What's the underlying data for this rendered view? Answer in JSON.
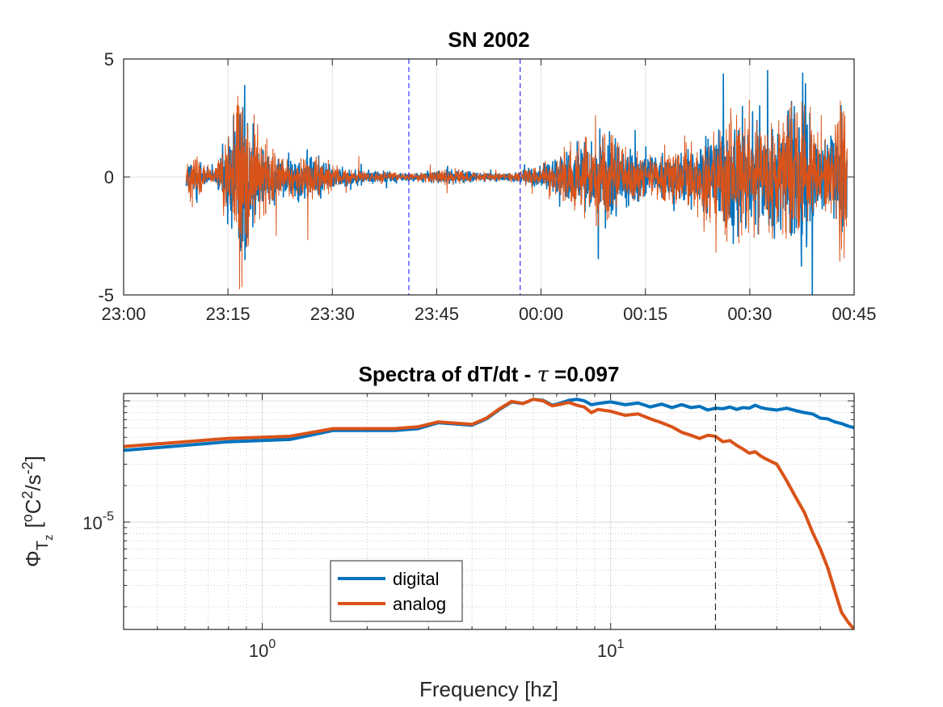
{
  "chart_data": [
    {
      "type": "line",
      "title": "SN 2002",
      "xlabel": "",
      "ylabel": "",
      "xlim": [
        "23:00",
        "00:45"
      ],
      "ylim": [
        -5,
        5
      ],
      "x_ticks": [
        "23:00",
        "23:15",
        "23:30",
        "23:45",
        "00:00",
        "00:15",
        "00:30",
        "00:45"
      ],
      "y_ticks": [
        "-5",
        "0",
        "5"
      ],
      "grid": true,
      "data_start": "23:09",
      "data_end": "00:44",
      "vertical_dashed_lines": [
        "23:41",
        "23:57"
      ],
      "series": [
        {
          "color": "#0072BD",
          "envelope_by_time": [
            [
              "23:09",
              0.3
            ],
            [
              "23:10",
              0.7
            ],
            [
              "23:11",
              0.5
            ],
            [
              "23:12",
              0.25
            ],
            [
              "23:13",
              0.15
            ],
            [
              "23:14",
              0.6
            ],
            [
              "23:15",
              1.5
            ],
            [
              "23:16",
              2.2
            ],
            [
              "23:17",
              2.6
            ],
            [
              "23:18",
              2.0
            ],
            [
              "23:20",
              1.0
            ],
            [
              "23:23",
              0.5
            ],
            [
              "23:26",
              0.7
            ],
            [
              "23:28",
              0.6
            ],
            [
              "23:30",
              0.3
            ],
            [
              "23:34",
              0.2
            ],
            [
              "23:38",
              0.15
            ],
            [
              "23:42",
              0.1
            ],
            [
              "23:45",
              0.2
            ],
            [
              "23:50",
              0.15
            ],
            [
              "23:55",
              0.1
            ],
            [
              "00:00",
              0.3
            ],
            [
              "00:03",
              0.7
            ],
            [
              "00:05",
              0.8
            ],
            [
              "00:08",
              1.0
            ],
            [
              "00:10",
              1.2
            ],
            [
              "00:12",
              0.8
            ],
            [
              "00:15",
              0.6
            ],
            [
              "00:18",
              0.6
            ],
            [
              "00:20",
              0.8
            ],
            [
              "00:23",
              0.9
            ],
            [
              "00:26",
              1.3
            ],
            [
              "00:28",
              1.7
            ],
            [
              "00:30",
              1.7
            ],
            [
              "00:32",
              1.4
            ],
            [
              "00:34",
              1.3
            ],
            [
              "00:36",
              2.0
            ],
            [
              "00:38",
              2.3
            ],
            [
              "00:40",
              0.8
            ],
            [
              "00:42",
              1.2
            ],
            [
              "00:43",
              2.5
            ],
            [
              "00:44",
              1.4
            ]
          ]
        },
        {
          "color": "#D95319",
          "envelope_by_time": [
            [
              "23:09",
              0.35
            ],
            [
              "23:10",
              0.8
            ],
            [
              "23:11",
              0.6
            ],
            [
              "23:12",
              0.3
            ],
            [
              "23:13",
              0.2
            ],
            [
              "23:14",
              0.7
            ],
            [
              "23:15",
              1.7
            ],
            [
              "23:16",
              2.4
            ],
            [
              "23:17",
              2.8
            ],
            [
              "23:18",
              2.2
            ],
            [
              "23:20",
              1.1
            ],
            [
              "23:23",
              0.55
            ],
            [
              "23:26",
              0.75
            ],
            [
              "23:28",
              0.65
            ],
            [
              "23:30",
              0.3
            ],
            [
              "23:34",
              0.2
            ],
            [
              "23:38",
              0.15
            ],
            [
              "23:42",
              0.1
            ],
            [
              "23:45",
              0.2
            ],
            [
              "23:50",
              0.15
            ],
            [
              "23:55",
              0.1
            ],
            [
              "00:00",
              0.3
            ],
            [
              "00:03",
              0.75
            ],
            [
              "00:05",
              0.85
            ],
            [
              "00:08",
              1.1
            ],
            [
              "00:10",
              1.3
            ],
            [
              "00:12",
              0.85
            ],
            [
              "00:15",
              0.65
            ],
            [
              "00:18",
              0.65
            ],
            [
              "00:20",
              0.85
            ],
            [
              "00:23",
              0.95
            ],
            [
              "00:26",
              1.4
            ],
            [
              "00:28",
              1.8
            ],
            [
              "00:30",
              1.8
            ],
            [
              "00:32",
              1.5
            ],
            [
              "00:34",
              1.4
            ],
            [
              "00:36",
              2.1
            ],
            [
              "00:38",
              2.4
            ],
            [
              "00:40",
              0.85
            ],
            [
              "00:42",
              1.3
            ],
            [
              "00:43",
              2.7
            ],
            [
              "00:44",
              1.5
            ]
          ]
        }
      ]
    },
    {
      "type": "line",
      "title_prefix": "Spectra of dT/dt - ",
      "title_symbol": "τ",
      "title_value": " =0.097",
      "xlabel": "Frequency [hz]",
      "ylabel": "Φ",
      "ylabel_subscript": "T",
      "ylabel_sub_subscript": "z",
      "ylabel_units_prefix": "[",
      "ylabel_units_o": "o",
      "ylabel_units_C": "C",
      "ylabel_units_sup2": "2",
      "ylabel_units_mid": "/s",
      "ylabel_units_supm2": "-2",
      "ylabel_units_suffix": "]",
      "x_scale": "log",
      "y_scale": "log",
      "xlim": [
        0.4,
        50
      ],
      "ylim": [
        1.3e-06,
        0.000115
      ],
      "x_ticks": [
        {
          "base": "10",
          "exp": "0",
          "value": 1
        },
        {
          "base": "10",
          "exp": "1",
          "value": 10
        }
      ],
      "y_ticks": [
        {
          "base": "10",
          "exp": "-5",
          "value": 1e-05
        }
      ],
      "grid": true,
      "minor_grid": true,
      "vertical_dashed_line_x": 20,
      "legend": {
        "position": "lower-left",
        "entries": [
          "digital",
          "analog"
        ]
      },
      "series": [
        {
          "name": "digital",
          "color": "#0072BD",
          "points": [
            [
              0.4,
              3.9e-05
            ],
            [
              0.8,
              4.6e-05
            ],
            [
              1.2,
              4.8e-05
            ],
            [
              1.6,
              5.7e-05
            ],
            [
              2.4,
              5.7e-05
            ],
            [
              2.8,
              5.9e-05
            ],
            [
              3.2,
              6.6e-05
            ],
            [
              4.0,
              6.3e-05
            ],
            [
              4.4,
              7.1e-05
            ],
            [
              4.8,
              8.5e-05
            ],
            [
              5.2,
              9.8e-05
            ],
            [
              5.6,
              9.5e-05
            ],
            [
              6.0,
              0.000103
            ],
            [
              6.4,
              0.000101
            ],
            [
              6.8,
              9.2e-05
            ],
            [
              7.2,
              9.6e-05
            ],
            [
              7.6,
              0.000101
            ],
            [
              8.0,
              0.000103
            ],
            [
              8.4,
              0.0001
            ],
            [
              8.8,
              9.3e-05
            ],
            [
              9.2,
              9.5e-05
            ],
            [
              10,
              9.8e-05
            ],
            [
              11,
              9.3e-05
            ],
            [
              12,
              9.6e-05
            ],
            [
              13,
              8.9e-05
            ],
            [
              14,
              9.4e-05
            ],
            [
              15,
              8.8e-05
            ],
            [
              16,
              9.3e-05
            ],
            [
              17,
              8.8e-05
            ],
            [
              18,
              9e-05
            ],
            [
              19,
              8.4e-05
            ],
            [
              20,
              8.7e-05
            ],
            [
              21,
              8.6e-05
            ],
            [
              22,
              8.9e-05
            ],
            [
              23,
              8.5e-05
            ],
            [
              24,
              8.8e-05
            ],
            [
              25,
              8.7e-05
            ],
            [
              26,
              9.2e-05
            ],
            [
              27,
              8.8e-05
            ],
            [
              28,
              8.6e-05
            ],
            [
              30,
              8.4e-05
            ],
            [
              32,
              8.7e-05
            ],
            [
              34,
              8.3e-05
            ],
            [
              36,
              8e-05
            ],
            [
              38,
              7.8e-05
            ],
            [
              40,
              7.2e-05
            ],
            [
              42,
              7.1e-05
            ],
            [
              44,
              6.7e-05
            ],
            [
              46,
              6.5e-05
            ],
            [
              48,
              6.2e-05
            ],
            [
              50,
              6e-05
            ]
          ]
        },
        {
          "name": "analog",
          "color": "#D95319",
          "points": [
            [
              0.4,
              4.2e-05
            ],
            [
              0.8,
              4.9e-05
            ],
            [
              1.2,
              5.1e-05
            ],
            [
              1.6,
              5.9e-05
            ],
            [
              2.4,
              5.9e-05
            ],
            [
              2.8,
              6.1e-05
            ],
            [
              3.2,
              6.7e-05
            ],
            [
              4.0,
              6.4e-05
            ],
            [
              4.4,
              7.2e-05
            ],
            [
              4.8,
              8.6e-05
            ],
            [
              5.2,
              9.9e-05
            ],
            [
              5.6,
              9.5e-05
            ],
            [
              6.0,
              0.000103
            ],
            [
              6.4,
              0.0001
            ],
            [
              6.8,
              9.1e-05
            ],
            [
              7.2,
              9.4e-05
            ],
            [
              7.6,
              9.7e-05
            ],
            [
              8.0,
              9.2e-05
            ],
            [
              8.4,
              8.9e-05
            ],
            [
              8.8,
              8e-05
            ],
            [
              9.2,
              8.5e-05
            ],
            [
              10,
              8.2e-05
            ],
            [
              11,
              7.6e-05
            ],
            [
              12,
              7.8e-05
            ],
            [
              13,
              7.1e-05
            ],
            [
              14,
              6.6e-05
            ],
            [
              15,
              6.1e-05
            ],
            [
              16,
              5.5e-05
            ],
            [
              17,
              5.2e-05
            ],
            [
              18,
              4.9e-05
            ],
            [
              19,
              5.2e-05
            ],
            [
              20,
              5.1e-05
            ],
            [
              21,
              4.6e-05
            ],
            [
              22,
              4.7e-05
            ],
            [
              23,
              4.3e-05
            ],
            [
              24,
              4e-05
            ],
            [
              25,
              3.7e-05
            ],
            [
              26,
              3.8e-05
            ],
            [
              27,
              3.5e-05
            ],
            [
              28,
              3.3e-05
            ],
            [
              30,
              3e-05
            ],
            [
              32,
              2.2e-05
            ],
            [
              34,
              1.6e-05
            ],
            [
              36,
              1.2e-05
            ],
            [
              38,
              8.2e-06
            ],
            [
              40,
              6e-06
            ],
            [
              42,
              4.2e-06
            ],
            [
              44,
              2.7e-06
            ],
            [
              46,
              1.8e-06
            ],
            [
              48,
              1.5e-06
            ],
            [
              50,
              1.3e-06
            ]
          ]
        }
      ]
    }
  ]
}
